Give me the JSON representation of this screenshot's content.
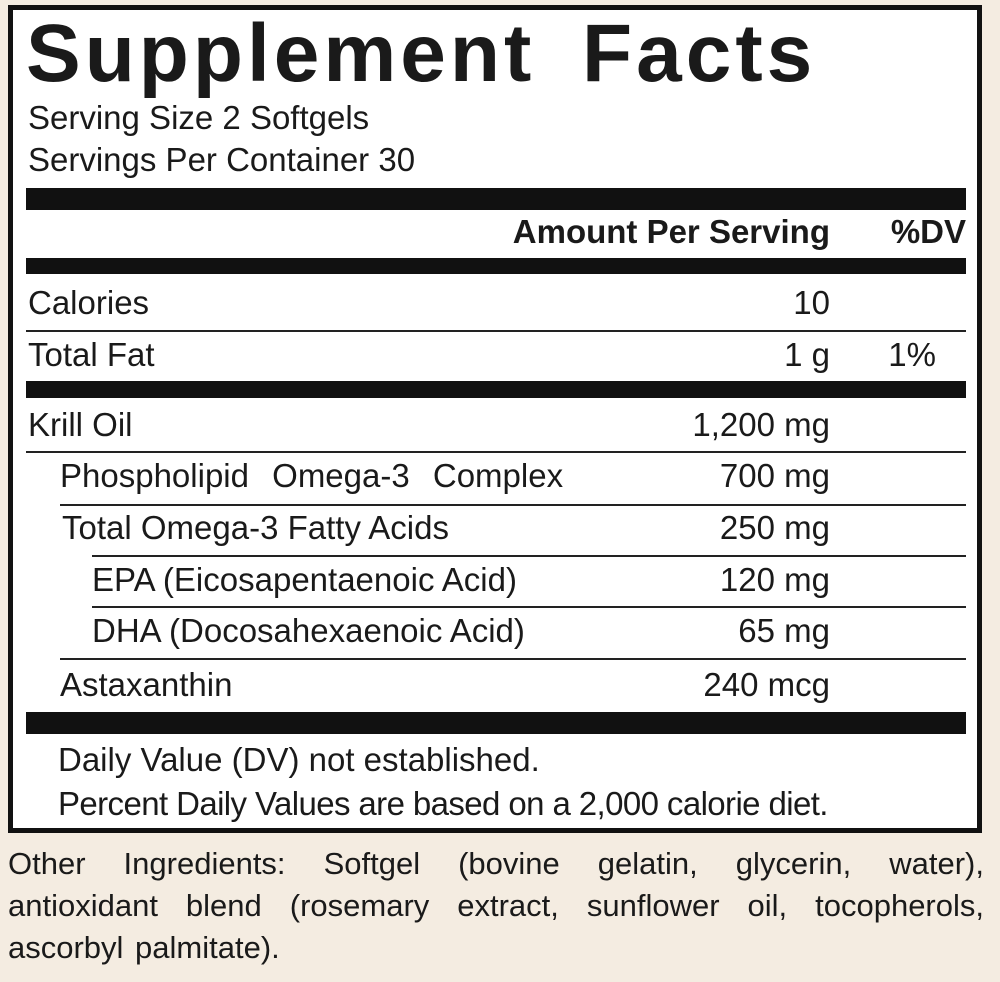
{
  "title": "Supplement Facts",
  "serving_size": "Serving Size 2 Softgels",
  "servings_per_container": "Servings Per Container 30",
  "header": {
    "amount": "Amount Per Serving",
    "dv": "%DV"
  },
  "rows": [
    {
      "name": "Calories",
      "amount": "10"
    },
    {
      "name": "Total Fat",
      "amount": "1 g",
      "dv": "1%"
    },
    {
      "name": "Krill Oil",
      "amount": "1,200 mg"
    },
    {
      "name": "Phospholipid Omega-3 Complex",
      "amount": "700 mg"
    },
    {
      "name": "Total Omega-3 Fatty Acids",
      "amount": "250 mg"
    },
    {
      "name": "EPA (Eicosapentaenoic Acid)",
      "amount": "120 mg"
    },
    {
      "name": "DHA (Docosahexaenoic Acid)",
      "amount": "65 mg"
    },
    {
      "name": "Astaxanthin",
      "amount": "240 mcg"
    }
  ],
  "footnotes": [
    "Daily Value (DV) not established.",
    "Percent Daily Values are based on a 2,000 calorie diet."
  ],
  "other_ingredients": "Other Ingredients: Softgel (bovine gelatin, glycerin, water), antioxidant blend (rosemary extract, sunflower oil, tocopherols, ascorbyl palmitate)."
}
